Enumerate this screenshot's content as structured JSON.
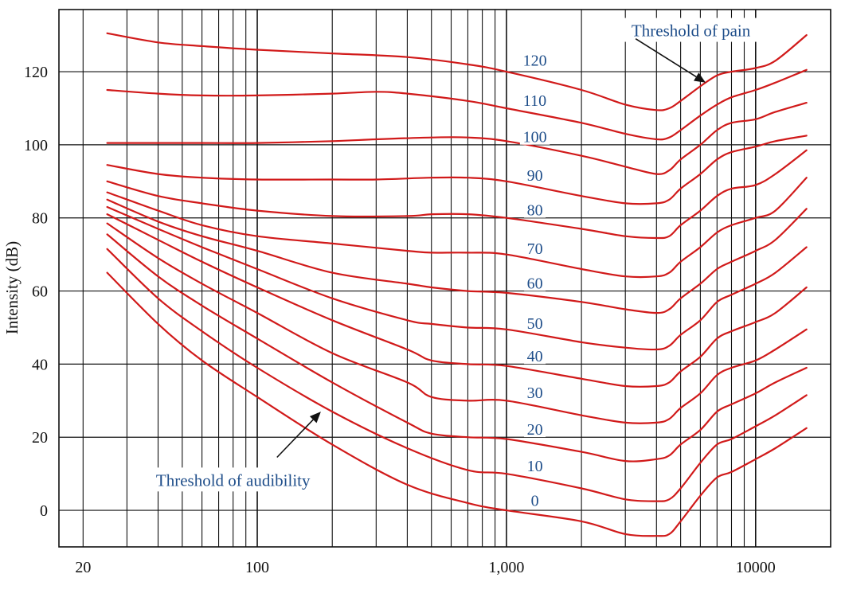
{
  "chart_data": {
    "type": "line",
    "title": "",
    "xlabel": "",
    "ylabel": "Intensity (dB)",
    "xscale": "log",
    "xlim": [
      16,
      20000
    ],
    "ylim": [
      -10,
      137
    ],
    "grid": true,
    "x_ticks": [
      {
        "value": 20,
        "label": "20"
      },
      {
        "value": 100,
        "label": "100"
      },
      {
        "value": 1000,
        "label": "1,000"
      },
      {
        "value": 10000,
        "label": "10000"
      }
    ],
    "y_ticks": [
      {
        "value": 0,
        "label": "0"
      },
      {
        "value": 20,
        "label": "20"
      },
      {
        "value": 40,
        "label": "40"
      },
      {
        "value": 60,
        "label": "60"
      },
      {
        "value": 80,
        "label": "80"
      },
      {
        "value": 100,
        "label": "100"
      },
      {
        "value": 120,
        "label": "120"
      }
    ],
    "series": [
      {
        "name": "0",
        "label": "0",
        "label_freq": 1300,
        "label_db": 2.5,
        "x": [
          25,
          40,
          60,
          100,
          200,
          400,
          700,
          1000,
          2000,
          3000,
          4000,
          4500,
          5000,
          6000,
          7000,
          8000,
          10000,
          12000,
          16000
        ],
        "y": [
          65,
          51,
          41,
          31,
          18,
          7,
          2,
          0,
          -3,
          -6.5,
          -7,
          -6.5,
          -3,
          4,
          9,
          10.5,
          14,
          17,
          22.5
        ]
      },
      {
        "name": "10",
        "label": "10",
        "label_freq": 1300,
        "label_db": 12,
        "x": [
          25,
          40,
          60,
          100,
          200,
          400,
          700,
          1000,
          2000,
          3000,
          4000,
          4500,
          5000,
          6000,
          7000,
          8000,
          10000,
          12000,
          16000
        ],
        "y": [
          71.5,
          58,
          49,
          39,
          27,
          17,
          11,
          10,
          6,
          3,
          2.5,
          3,
          6,
          13,
          18,
          19.5,
          23,
          26,
          31.5
        ]
      },
      {
        "name": "20",
        "label": "20",
        "label_freq": 1300,
        "label_db": 22,
        "x": [
          25,
          40,
          60,
          100,
          200,
          400,
          500,
          700,
          1000,
          2000,
          3000,
          4000,
          4500,
          5000,
          6000,
          7000,
          8000,
          10000,
          12000,
          16000
        ],
        "y": [
          75.5,
          64,
          56,
          47,
          35,
          24,
          21,
          20,
          19.5,
          16,
          13.5,
          14,
          15,
          18,
          22,
          27,
          29,
          32,
          35,
          39
        ]
      },
      {
        "name": "30",
        "label": "30",
        "label_freq": 1300,
        "label_db": 32,
        "x": [
          25,
          40,
          60,
          100,
          200,
          400,
          500,
          700,
          1000,
          2000,
          3000,
          4000,
          4500,
          5000,
          6000,
          7000,
          8000,
          10000,
          12000,
          16000
        ],
        "y": [
          78.5,
          69,
          62,
          54,
          43,
          35,
          31,
          30,
          30,
          26,
          24,
          24,
          25,
          28,
          32,
          37,
          39,
          41,
          44,
          49.5
        ]
      },
      {
        "name": "40",
        "label": "40",
        "label_freq": 1300,
        "label_db": 42,
        "x": [
          25,
          40,
          60,
          100,
          200,
          400,
          500,
          700,
          1000,
          2000,
          3000,
          4000,
          4500,
          5000,
          6000,
          7000,
          8000,
          10000,
          12000,
          16000
        ],
        "y": [
          81,
          74,
          68,
          61,
          52,
          44,
          41,
          40,
          39.5,
          36,
          34,
          34,
          35,
          38,
          42,
          47,
          49,
          51.5,
          54,
          61
        ]
      },
      {
        "name": "50",
        "label": "50",
        "label_freq": 1300,
        "label_db": 51,
        "x": [
          25,
          40,
          60,
          100,
          200,
          400,
          500,
          700,
          1000,
          2000,
          3000,
          4000,
          4500,
          5000,
          6000,
          7000,
          8000,
          10000,
          12000,
          16000
        ],
        "y": [
          83,
          77,
          72,
          66,
          58,
          52,
          51,
          50,
          49.5,
          46,
          44.5,
          44,
          45,
          48,
          52,
          57,
          59,
          62,
          65,
          72
        ]
      },
      {
        "name": "60",
        "label": "60",
        "label_freq": 1300,
        "label_db": 62,
        "x": [
          25,
          40,
          60,
          100,
          200,
          400,
          500,
          700,
          1000,
          2000,
          3000,
          4000,
          4500,
          5000,
          6000,
          7000,
          8000,
          10000,
          12000,
          16000
        ],
        "y": [
          85,
          79,
          75,
          71,
          65,
          62,
          61,
          60,
          59.5,
          57,
          55,
          54,
          55,
          58,
          62,
          66,
          68,
          71,
          74,
          82.5
        ]
      },
      {
        "name": "70",
        "label": "70",
        "label_freq": 1300,
        "label_db": 71.5,
        "x": [
          25,
          40,
          60,
          100,
          200,
          400,
          500,
          700,
          1000,
          2000,
          3000,
          4000,
          4500,
          5000,
          6000,
          7000,
          8000,
          10000,
          12000,
          16000
        ],
        "y": [
          87,
          82,
          78,
          75,
          73,
          71,
          70.5,
          70.5,
          70,
          66,
          64,
          64,
          65,
          68,
          72,
          76,
          78,
          80,
          82,
          91
        ]
      },
      {
        "name": "80",
        "label": "80",
        "label_freq": 1300,
        "label_db": 82,
        "x": [
          25,
          40,
          60,
          100,
          200,
          400,
          500,
          700,
          1000,
          2000,
          3000,
          4000,
          4500,
          5000,
          6000,
          7000,
          8000,
          10000,
          12000,
          16000
        ],
        "y": [
          90,
          86,
          84,
          82,
          80.5,
          80.5,
          81,
          81,
          80,
          77,
          75,
          74.5,
          75,
          78,
          82,
          86,
          88,
          89,
          92,
          98.5
        ]
      },
      {
        "name": "90",
        "label": "90",
        "label_freq": 1300,
        "label_db": 91.5,
        "x": [
          25,
          40,
          60,
          100,
          200,
          300,
          500,
          700,
          1000,
          2000,
          3000,
          4000,
          4500,
          5000,
          6000,
          7000,
          8000,
          10000,
          12000,
          16000
        ],
        "y": [
          94.5,
          92,
          91,
          90.5,
          90.5,
          90.5,
          91,
          91,
          90,
          86,
          84,
          84,
          85,
          88,
          92,
          96,
          98,
          99.5,
          101,
          102.5
        ]
      },
      {
        "name": "100",
        "label": "100",
        "label_freq": 1300,
        "label_db": 102,
        "x": [
          25,
          40,
          60,
          100,
          200,
          300,
          500,
          700,
          1000,
          2000,
          3000,
          4000,
          4500,
          5000,
          6000,
          7000,
          8000,
          10000,
          12000,
          16000
        ],
        "y": [
          100.5,
          100.5,
          100.5,
          100.5,
          101,
          101.5,
          102,
          102,
          101,
          97,
          94,
          92,
          93,
          96,
          100,
          104,
          106,
          107,
          109,
          111.5
        ]
      },
      {
        "name": "110",
        "label": "110",
        "label_freq": 1300,
        "label_db": 112,
        "x": [
          25,
          40,
          60,
          100,
          200,
          300,
          400,
          700,
          1000,
          2000,
          3000,
          4000,
          4500,
          5000,
          6000,
          7000,
          8000,
          10000,
          12000,
          16000
        ],
        "y": [
          115,
          114,
          113.5,
          113.5,
          114,
          114.5,
          114,
          112,
          110,
          106,
          103,
          101.5,
          102,
          104,
          108,
          111,
          113,
          115,
          117,
          120.5
        ]
      },
      {
        "name": "120",
        "label": "120",
        "label_freq": 1300,
        "label_db": 123,
        "x": [
          25,
          40,
          60,
          100,
          200,
          400,
          700,
          1000,
          2000,
          3000,
          4000,
          4500,
          5000,
          6000,
          7000,
          8000,
          10000,
          12000,
          16000
        ],
        "y": [
          130.5,
          128,
          127,
          126,
          125,
          124,
          122,
          120,
          115,
          111,
          109.5,
          110,
          112,
          116,
          119,
          120,
          121,
          123,
          130
        ]
      }
    ],
    "annotations": [
      {
        "text": "Threshold of pain",
        "text_freq": 5500,
        "text_db": 131,
        "arrow_from": [
          3300,
          129
        ],
        "arrow_to": [
          6300,
          117
        ]
      },
      {
        "text": "Threshold of audibility",
        "text_freq": 80,
        "text_db": 8,
        "arrow_from": [
          120,
          14.5
        ],
        "arrow_to": [
          180,
          27
        ]
      }
    ]
  }
}
